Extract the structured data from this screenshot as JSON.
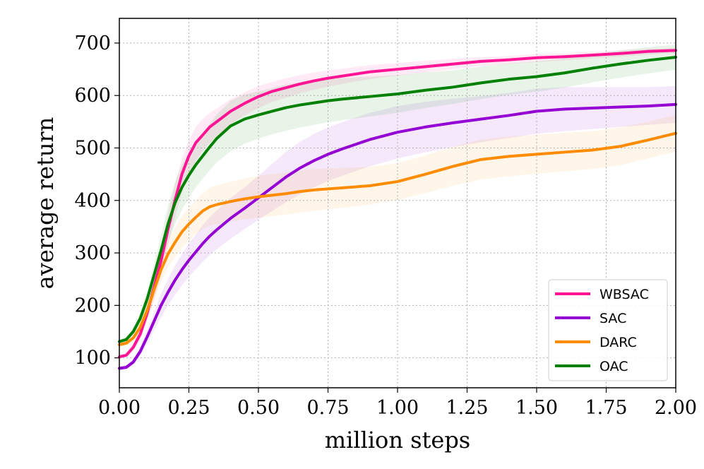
{
  "chart_data": {
    "type": "line",
    "title": "",
    "xlabel": "million steps",
    "ylabel": "average return",
    "xlim": [
      0.0,
      2.0
    ],
    "ylim": [
      43,
      747
    ],
    "xticks": [
      0.0,
      0.25,
      0.5,
      0.75,
      1.0,
      1.25,
      1.5,
      1.75,
      2.0
    ],
    "xtick_labels": [
      "0.00",
      "0.25",
      "0.50",
      "0.75",
      "1.00",
      "1.25",
      "1.50",
      "1.75",
      "2.00"
    ],
    "yticks": [
      100,
      200,
      300,
      400,
      500,
      600,
      700
    ],
    "ytick_labels": [
      "100",
      "200",
      "300",
      "400",
      "500",
      "600",
      "700"
    ],
    "grid": true,
    "legend_position": "lower-right",
    "x": [
      0.0,
      0.025,
      0.05,
      0.075,
      0.1,
      0.125,
      0.15,
      0.175,
      0.2,
      0.225,
      0.25,
      0.275,
      0.3,
      0.325,
      0.35,
      0.4,
      0.45,
      0.5,
      0.55,
      0.6,
      0.65,
      0.7,
      0.75,
      0.8,
      0.9,
      1.0,
      1.1,
      1.2,
      1.3,
      1.4,
      1.5,
      1.6,
      1.7,
      1.8,
      1.9,
      2.0
    ],
    "series": [
      {
        "name": "WBSAC",
        "color": "#ff1493",
        "values": [
          102,
          105,
          120,
          145,
          185,
          235,
          285,
          345,
          400,
          450,
          485,
          510,
          525,
          540,
          550,
          570,
          585,
          598,
          608,
          615,
          622,
          628,
          633,
          637,
          645,
          650,
          655,
          660,
          665,
          668,
          672,
          674,
          677,
          680,
          684,
          686
        ],
        "lower": [
          97,
          100,
          112,
          133,
          168,
          210,
          257,
          315,
          367,
          415,
          450,
          476,
          495,
          510,
          522,
          545,
          562,
          576,
          588,
          596,
          604,
          611,
          617,
          622,
          631,
          638,
          644,
          650,
          656,
          660,
          664,
          667,
          671,
          674,
          678,
          681
        ],
        "upper": [
          107,
          110,
          128,
          157,
          202,
          260,
          313,
          375,
          430,
          480,
          515,
          540,
          555,
          567,
          575,
          593,
          606,
          618,
          626,
          633,
          639,
          644,
          648,
          651,
          658,
          662,
          666,
          670,
          673,
          675,
          679,
          680,
          683,
          686,
          689,
          691
        ]
      },
      {
        "name": "SAC",
        "color": "#9400d3",
        "values": [
          80,
          82,
          92,
          112,
          140,
          170,
          200,
          225,
          248,
          268,
          286,
          302,
          318,
          332,
          344,
          366,
          385,
          405,
          425,
          445,
          462,
          476,
          488,
          498,
          516,
          530,
          540,
          548,
          555,
          562,
          570,
          574,
          576,
          578,
          580,
          583
        ],
        "lower": [
          76,
          78,
          86,
          103,
          127,
          153,
          178,
          200,
          220,
          238,
          254,
          269,
          283,
          296,
          307,
          327,
          345,
          363,
          380,
          397,
          412,
          425,
          437,
          447,
          465,
          480,
          492,
          502,
          511,
          519,
          527,
          532,
          536,
          540,
          544,
          548
        ],
        "upper": [
          84,
          86,
          98,
          121,
          153,
          187,
          222,
          250,
          276,
          298,
          318,
          335,
          353,
          368,
          381,
          405,
          425,
          447,
          470,
          493,
          512,
          527,
          539,
          549,
          567,
          580,
          588,
          594,
          599,
          605,
          613,
          616,
          616,
          616,
          616,
          618
        ]
      },
      {
        "name": "DARC",
        "color": "#ff8c00",
        "values": [
          125,
          128,
          138,
          158,
          190,
          230,
          268,
          298,
          320,
          340,
          355,
          368,
          380,
          388,
          392,
          398,
          403,
          407,
          410,
          413,
          417,
          420,
          422,
          424,
          428,
          436,
          450,
          465,
          478,
          484,
          488,
          492,
          496,
          503,
          515,
          528
        ],
        "lower": [
          120,
          123,
          131,
          148,
          175,
          210,
          244,
          272,
          292,
          310,
          324,
          336,
          346,
          352,
          355,
          360,
          364,
          367,
          370,
          373,
          377,
          380,
          383,
          386,
          392,
          401,
          414,
          428,
          440,
          446,
          451,
          455,
          460,
          467,
          480,
          493
        ],
        "upper": [
          130,
          133,
          145,
          168,
          205,
          250,
          292,
          324,
          348,
          370,
          386,
          400,
          414,
          424,
          429,
          436,
          442,
          447,
          450,
          453,
          457,
          460,
          461,
          462,
          464,
          471,
          486,
          502,
          516,
          522,
          525,
          529,
          532,
          539,
          550,
          563
        ]
      },
      {
        "name": "OAC",
        "color": "#008000",
        "values": [
          131,
          135,
          150,
          175,
          212,
          258,
          305,
          355,
          395,
          425,
          448,
          468,
          485,
          502,
          518,
          542,
          555,
          563,
          570,
          577,
          582,
          586,
          590,
          593,
          598,
          603,
          610,
          616,
          624,
          631,
          636,
          643,
          652,
          660,
          667,
          673
        ],
        "lower": [
          127,
          131,
          143,
          164,
          196,
          236,
          277,
          320,
          355,
          382,
          405,
          425,
          442,
          458,
          472,
          494,
          508,
          518,
          526,
          533,
          539,
          544,
          549,
          553,
          560,
          567,
          576,
          584,
          593,
          601,
          607,
          615,
          625,
          634,
          642,
          649
        ],
        "upper": [
          135,
          139,
          157,
          186,
          228,
          280,
          333,
          390,
          435,
          468,
          491,
          511,
          528,
          546,
          564,
          590,
          602,
          608,
          614,
          621,
          625,
          628,
          631,
          633,
          636,
          639,
          644,
          648,
          655,
          661,
          665,
          671,
          679,
          686,
          692,
          697
        ]
      }
    ]
  }
}
